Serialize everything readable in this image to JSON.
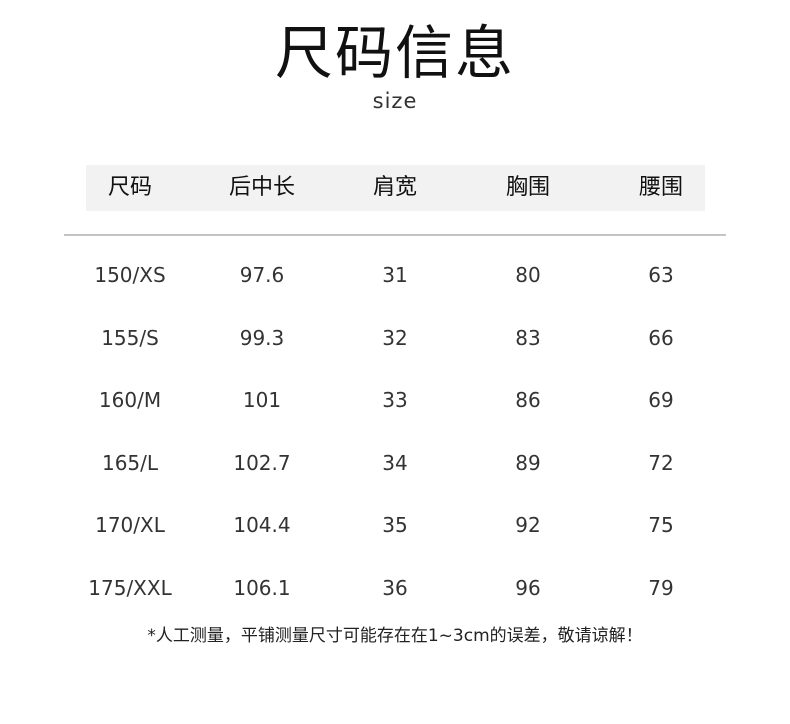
{
  "title": "尺码信息",
  "subtitle": "size",
  "table": {
    "headers": [
      "尺码",
      "后中长",
      "肩宽",
      "胸围",
      "腰围"
    ],
    "rows": [
      [
        "150/XS",
        "97.6",
        "31",
        "80",
        "63"
      ],
      [
        "155/S",
        "99.3",
        "32",
        "83",
        "66"
      ],
      [
        "160/M",
        "101",
        "33",
        "86",
        "69"
      ],
      [
        "165/L",
        "102.7",
        "34",
        "89",
        "72"
      ],
      [
        "170/XL",
        "104.4",
        "35",
        "92",
        "75"
      ],
      [
        "175/XXL",
        "106.1",
        "36",
        "96",
        "79"
      ]
    ]
  },
  "note": "*人工测量，平铺测量尺寸可能存在在1~3cm的误差，敬请谅解！"
}
